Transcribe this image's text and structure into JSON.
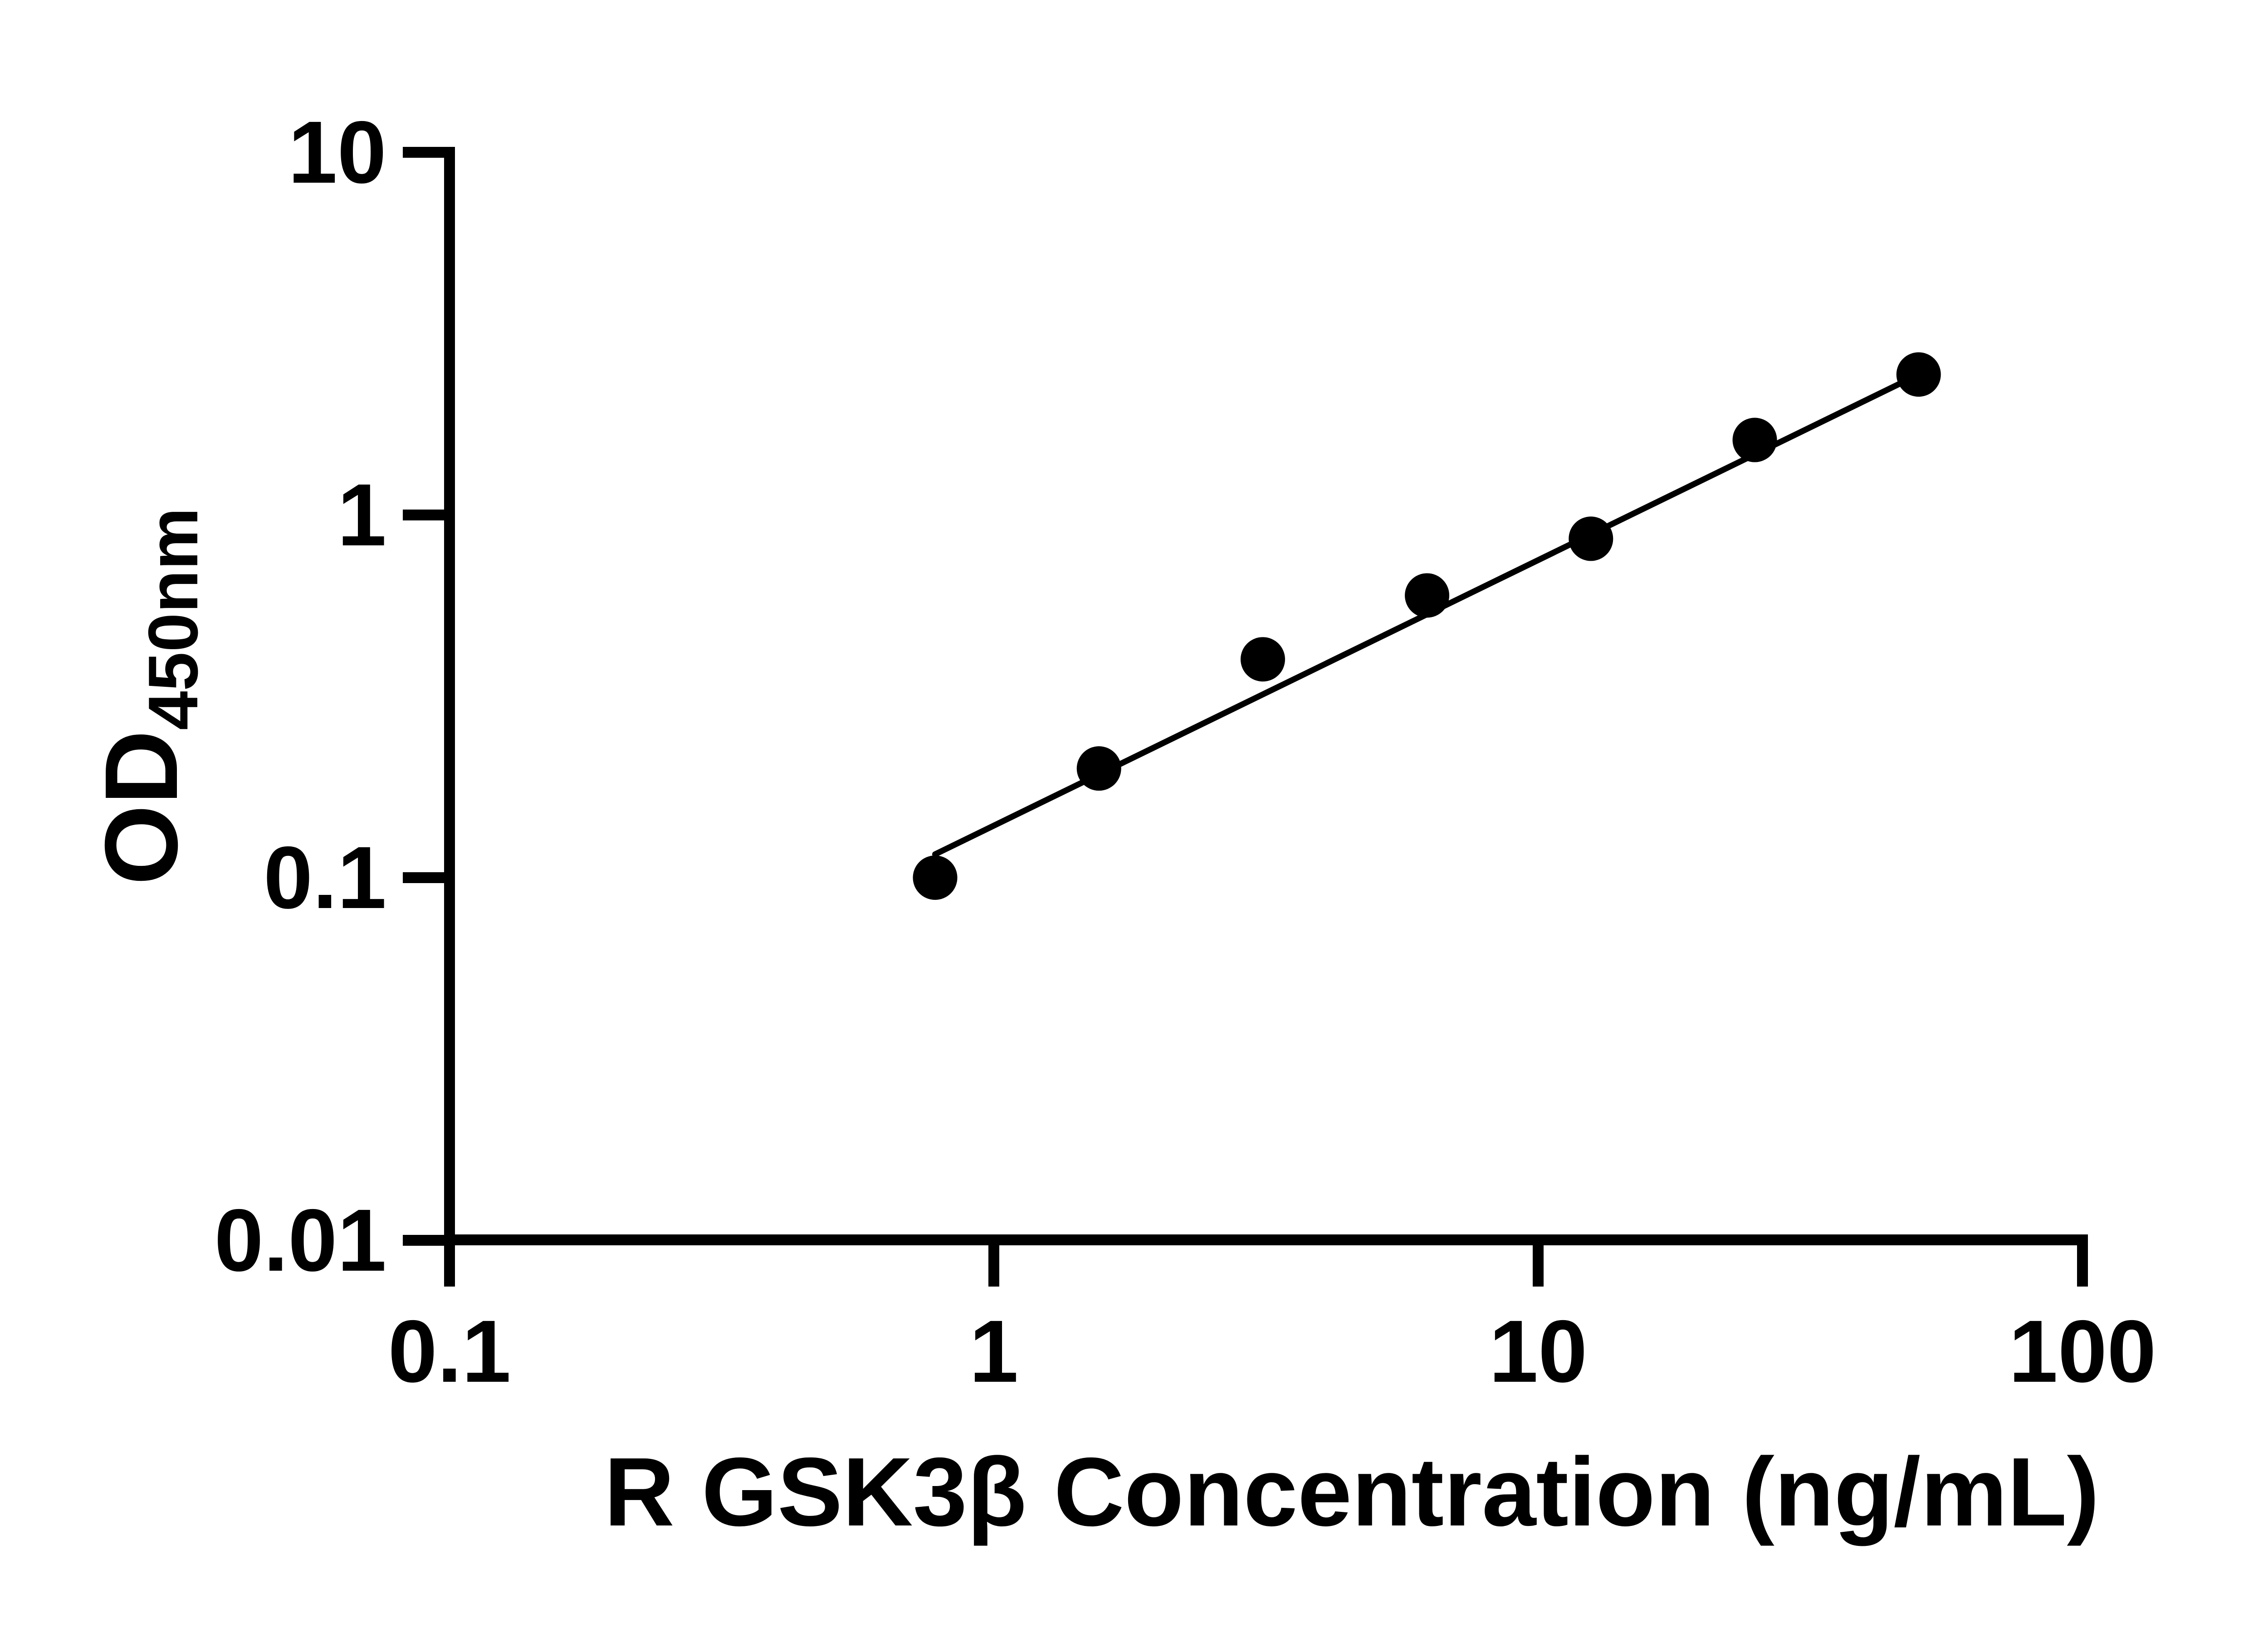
{
  "figure": {
    "background_color": "#ffffff",
    "ink_color": "#000000"
  },
  "chart_data": {
    "type": "scatter",
    "title": "",
    "xlabel": "R GSK3β Concentration (ng/mL)",
    "ylabel": "OD450nm",
    "ylabel_main": "OD",
    "ylabel_sub": "450nm",
    "x_scale": "log10",
    "y_scale": "log10",
    "xlim": [
      0.1,
      100
    ],
    "ylim": [
      0.01,
      10
    ],
    "x_ticks": [
      0.1,
      1,
      10,
      100
    ],
    "x_tick_labels": [
      "0.1",
      "1",
      "10",
      "100"
    ],
    "y_ticks": [
      10,
      1,
      0.1,
      0.01
    ],
    "y_tick_labels": [
      "10",
      "1",
      "0.1",
      "0.01"
    ],
    "grid": false,
    "legend": null,
    "series": [
      {
        "name": "standard-curve-points",
        "marker": "filled-circle",
        "color": "#000000",
        "x": [
          0.78,
          1.56,
          3.12,
          6.25,
          12.5,
          25,
          50
        ],
        "y": [
          0.1,
          0.2,
          0.4,
          0.6,
          0.86,
          1.61,
          2.44
        ]
      }
    ],
    "fit_line": {
      "color": "#000000",
      "x_start": 0.78,
      "y_start": 0.116,
      "x_end": 50,
      "y_end": 2.44
    }
  }
}
